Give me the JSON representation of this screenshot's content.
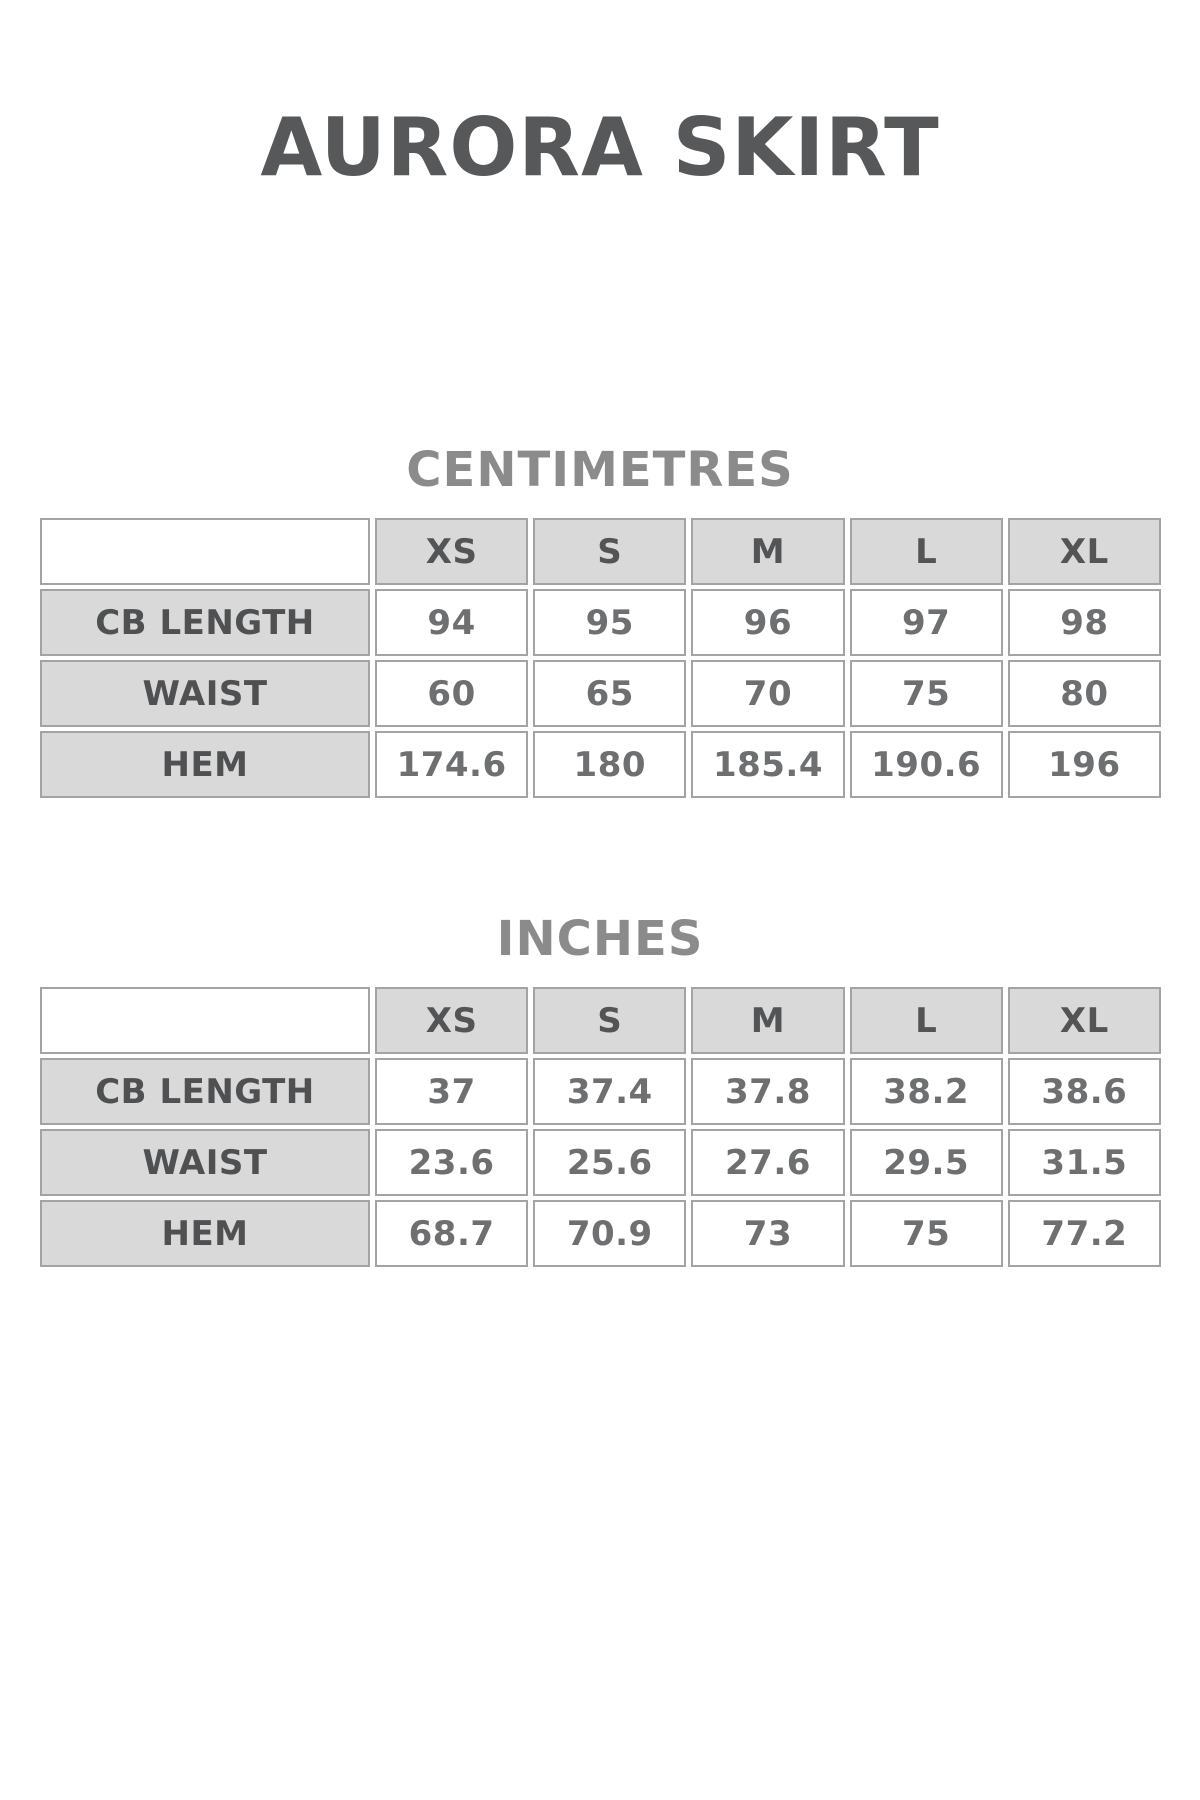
{
  "page": {
    "title": "AURORA SKIRT"
  },
  "colors": {
    "title_text": "#57585a",
    "section_heading_text": "#8b8b8b",
    "cell_fill_gray": "#d9d9d9",
    "cell_border": "#a3a3a3",
    "label_text": "#4f5052",
    "value_text": "#6e6f71",
    "background": "#ffffff"
  },
  "tables": [
    {
      "heading": "CENTIMETRES",
      "sizes": [
        "XS",
        "S",
        "M",
        "L",
        "XL"
      ],
      "rows": [
        {
          "label": "CB LENGTH",
          "values": [
            "94",
            "95",
            "96",
            "97",
            "98"
          ]
        },
        {
          "label": "WAIST",
          "values": [
            "60",
            "65",
            "70",
            "75",
            "80"
          ]
        },
        {
          "label": "HEM",
          "values": [
            "174.6",
            "180",
            "185.4",
            "190.6",
            "196"
          ]
        }
      ]
    },
    {
      "heading": "INCHES",
      "sizes": [
        "XS",
        "S",
        "M",
        "L",
        "XL"
      ],
      "rows": [
        {
          "label": "CB LENGTH",
          "values": [
            "37",
            "37.4",
            "37.8",
            "38.2",
            "38.6"
          ]
        },
        {
          "label": "WAIST",
          "values": [
            "23.6",
            "25.6",
            "27.6",
            "29.5",
            "31.5"
          ]
        },
        {
          "label": "HEM",
          "values": [
            "68.7",
            "70.9",
            "73",
            "75",
            "77.2"
          ]
        }
      ]
    }
  ]
}
